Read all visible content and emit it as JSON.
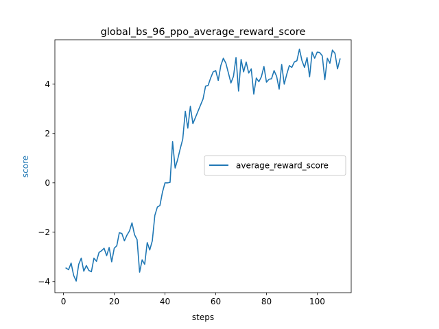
{
  "chart_data": {
    "type": "line",
    "title": "global_bs_96_ppo_average_reward_score",
    "xlabel": "steps",
    "ylabel": "score",
    "xlim": [
      -3.4,
      113.4
    ],
    "ylim": [
      -4.45,
      5.8
    ],
    "xticks": [
      0,
      20,
      40,
      60,
      80,
      100
    ],
    "yticks": [
      -4,
      -2,
      0,
      2,
      4
    ],
    "grid": false,
    "legend_position": "center-right",
    "colors": {
      "line": "#1f77b4",
      "ylabel": "#1f77b4"
    },
    "series": [
      {
        "name": "average_reward_score",
        "x": [
          1,
          2,
          3,
          4,
          5,
          6,
          7,
          8,
          9,
          10,
          11,
          12,
          13,
          14,
          15,
          16,
          17,
          18,
          19,
          20,
          21,
          22,
          23,
          24,
          25,
          26,
          27,
          28,
          29,
          30,
          31,
          32,
          33,
          34,
          35,
          36,
          37,
          38,
          39,
          40,
          41,
          42,
          43,
          44,
          45,
          46,
          47,
          48,
          49,
          50,
          51,
          52,
          53,
          54,
          55,
          56,
          57,
          58,
          59,
          60,
          61,
          62,
          63,
          64,
          65,
          66,
          67,
          68,
          69,
          70,
          71,
          72,
          73,
          74,
          75,
          76,
          77,
          78,
          79,
          80,
          81,
          82,
          83,
          84,
          85,
          86,
          87,
          88,
          89,
          90,
          91,
          92,
          93,
          94,
          95,
          96,
          97,
          98,
          99,
          100,
          101,
          102,
          103,
          104,
          105,
          106,
          107,
          108,
          109
        ],
        "values": [
          -3.45,
          -3.52,
          -3.25,
          -3.75,
          -3.98,
          -3.3,
          -3.05,
          -3.58,
          -3.35,
          -3.55,
          -3.6,
          -3.05,
          -3.18,
          -2.82,
          -2.75,
          -2.65,
          -2.95,
          -2.62,
          -3.2,
          -2.65,
          -2.55,
          -2.02,
          -2.05,
          -2.35,
          -2.12,
          -1.95,
          -1.62,
          -2.1,
          -2.3,
          -3.62,
          -3.12,
          -3.3,
          -2.42,
          -2.72,
          -2.35,
          -1.32,
          -0.98,
          -0.92,
          -0.38,
          0.0,
          0.0,
          0.02,
          1.67,
          0.6,
          0.95,
          1.38,
          1.77,
          2.9,
          2.22,
          3.1,
          2.4,
          2.65,
          2.9,
          3.15,
          3.4,
          3.92,
          3.95,
          4.25,
          4.5,
          4.55,
          4.15,
          4.75,
          5.05,
          4.85,
          4.45,
          4.05,
          4.32,
          5.08,
          3.72,
          5.0,
          4.5,
          4.9,
          4.45,
          4.62,
          3.6,
          4.25,
          4.1,
          4.3,
          4.72,
          4.08,
          4.2,
          4.22,
          4.55,
          4.32,
          3.8,
          4.8,
          4.0,
          4.4,
          4.75,
          4.68,
          4.9,
          4.95,
          5.42,
          4.95,
          4.68,
          5.08,
          4.3,
          5.3,
          5.05,
          5.3,
          5.28,
          5.15,
          4.18,
          5.05,
          4.85,
          5.38,
          5.25,
          4.62,
          5.02
        ]
      }
    ]
  }
}
